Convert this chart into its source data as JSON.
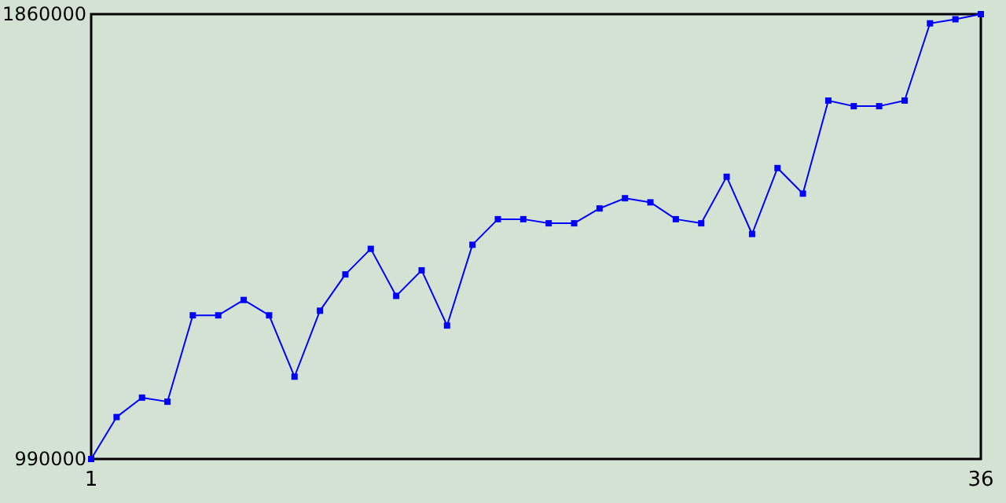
{
  "chart_data": {
    "type": "line",
    "x": [
      1,
      2,
      3,
      4,
      5,
      6,
      7,
      8,
      9,
      10,
      11,
      12,
      13,
      14,
      15,
      16,
      17,
      18,
      19,
      20,
      21,
      22,
      23,
      24,
      25,
      26,
      27,
      28,
      29,
      30,
      31,
      32,
      33,
      34,
      35,
      36
    ],
    "series": [
      {
        "color": "#0000ff",
        "values": [
          990000,
          1072000,
          1110000,
          1102000,
          1271000,
          1271000,
          1301000,
          1271000,
          1151000,
          1280000,
          1351000,
          1401000,
          1309000,
          1359000,
          1251000,
          1409000,
          1459000,
          1459000,
          1451000,
          1451000,
          1480000,
          1500000,
          1492000,
          1459000,
          1451000,
          1542000,
          1430000,
          1559000,
          1509000,
          1691000,
          1680000,
          1680000,
          1691000,
          1842000,
          1850000,
          1860000
        ]
      }
    ],
    "xlim": [
      1,
      36
    ],
    "xticks": [
      1,
      36
    ],
    "ylim": [
      990000,
      1860000
    ],
    "yticks": [
      990000,
      1860000
    ],
    "grid": false,
    "marker": "square",
    "line_style": "solid"
  }
}
